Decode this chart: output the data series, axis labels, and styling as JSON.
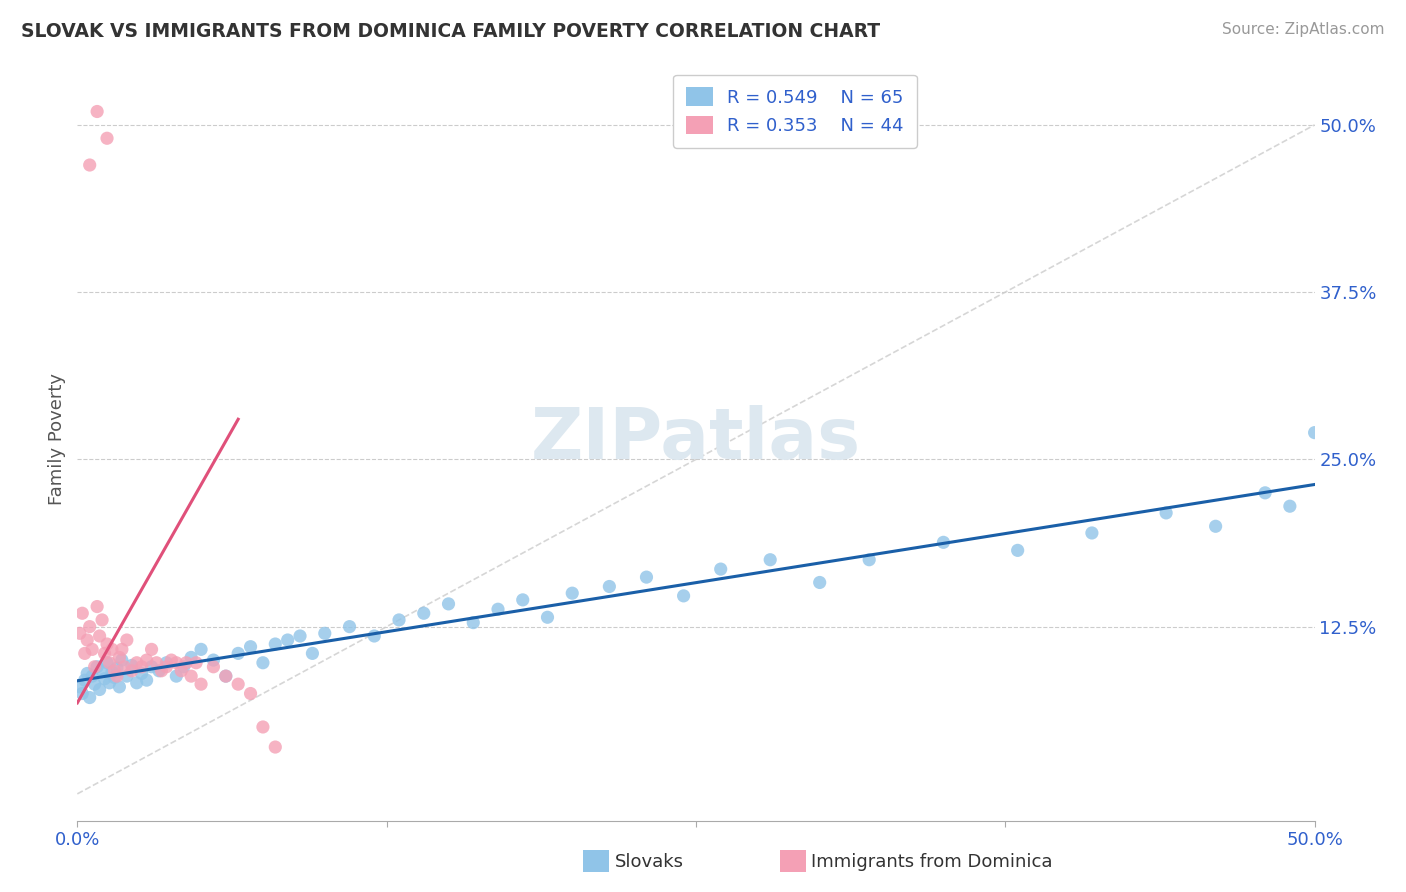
{
  "title": "SLOVAK VS IMMIGRANTS FROM DOMINICA FAMILY POVERTY CORRELATION CHART",
  "source": "Source: ZipAtlas.com",
  "ylabel": "Family Poverty",
  "xlim": [
    0.0,
    0.5
  ],
  "ylim": [
    -0.02,
    0.55
  ],
  "R_slovak": 0.549,
  "N_slovak": 65,
  "R_dominica": 0.353,
  "N_dominica": 44,
  "color_slovak": "#90c4e8",
  "color_dominica": "#f4a0b5",
  "color_trend_slovak": "#1a5fa8",
  "color_trend_dominica": "#e0507a",
  "color_refline": "#cccccc",
  "legend_color": "#3060cc",
  "watermark_color": "#dde8f0",
  "watermark_text": "ZIPatlas",
  "slovak_x": [
    0.001,
    0.002,
    0.003,
    0.004,
    0.005,
    0.006,
    0.007,
    0.008,
    0.009,
    0.01,
    0.011,
    0.012,
    0.013,
    0.014,
    0.015,
    0.016,
    0.017,
    0.018,
    0.02,
    0.022,
    0.024,
    0.026,
    0.028,
    0.03,
    0.033,
    0.036,
    0.04,
    0.043,
    0.046,
    0.05,
    0.055,
    0.06,
    0.065,
    0.07,
    0.075,
    0.08,
    0.085,
    0.09,
    0.095,
    0.1,
    0.11,
    0.12,
    0.13,
    0.14,
    0.15,
    0.16,
    0.17,
    0.18,
    0.19,
    0.2,
    0.215,
    0.23,
    0.245,
    0.26,
    0.28,
    0.3,
    0.32,
    0.35,
    0.38,
    0.41,
    0.44,
    0.46,
    0.48,
    0.49,
    0.5
  ],
  "slovak_y": [
    0.08,
    0.075,
    0.085,
    0.09,
    0.072,
    0.088,
    0.082,
    0.095,
    0.078,
    0.092,
    0.086,
    0.098,
    0.083,
    0.091,
    0.087,
    0.094,
    0.08,
    0.1,
    0.088,
    0.096,
    0.083,
    0.09,
    0.085,
    0.095,
    0.092,
    0.098,
    0.088,
    0.095,
    0.102,
    0.108,
    0.1,
    0.088,
    0.105,
    0.11,
    0.098,
    0.112,
    0.115,
    0.118,
    0.105,
    0.12,
    0.125,
    0.118,
    0.13,
    0.135,
    0.142,
    0.128,
    0.138,
    0.145,
    0.132,
    0.15,
    0.155,
    0.162,
    0.148,
    0.168,
    0.175,
    0.158,
    0.175,
    0.188,
    0.182,
    0.195,
    0.21,
    0.2,
    0.225,
    0.215,
    0.27
  ],
  "dominica_x": [
    0.001,
    0.002,
    0.003,
    0.004,
    0.005,
    0.006,
    0.007,
    0.008,
    0.009,
    0.01,
    0.011,
    0.012,
    0.013,
    0.014,
    0.015,
    0.016,
    0.017,
    0.018,
    0.019,
    0.02,
    0.022,
    0.024,
    0.026,
    0.028,
    0.03,
    0.032,
    0.034,
    0.036,
    0.038,
    0.04,
    0.042,
    0.044,
    0.046,
    0.048,
    0.05,
    0.055,
    0.06,
    0.065,
    0.07,
    0.075,
    0.08,
    0.005,
    0.008,
    0.012
  ],
  "dominica_y": [
    0.12,
    0.135,
    0.105,
    0.115,
    0.125,
    0.108,
    0.095,
    0.14,
    0.118,
    0.13,
    0.105,
    0.112,
    0.098,
    0.108,
    0.092,
    0.088,
    0.102,
    0.108,
    0.095,
    0.115,
    0.092,
    0.098,
    0.095,
    0.1,
    0.108,
    0.098,
    0.092,
    0.095,
    0.1,
    0.098,
    0.092,
    0.098,
    0.088,
    0.098,
    0.082,
    0.095,
    0.088,
    0.082,
    0.075,
    0.05,
    0.035,
    0.47,
    0.51,
    0.49
  ]
}
